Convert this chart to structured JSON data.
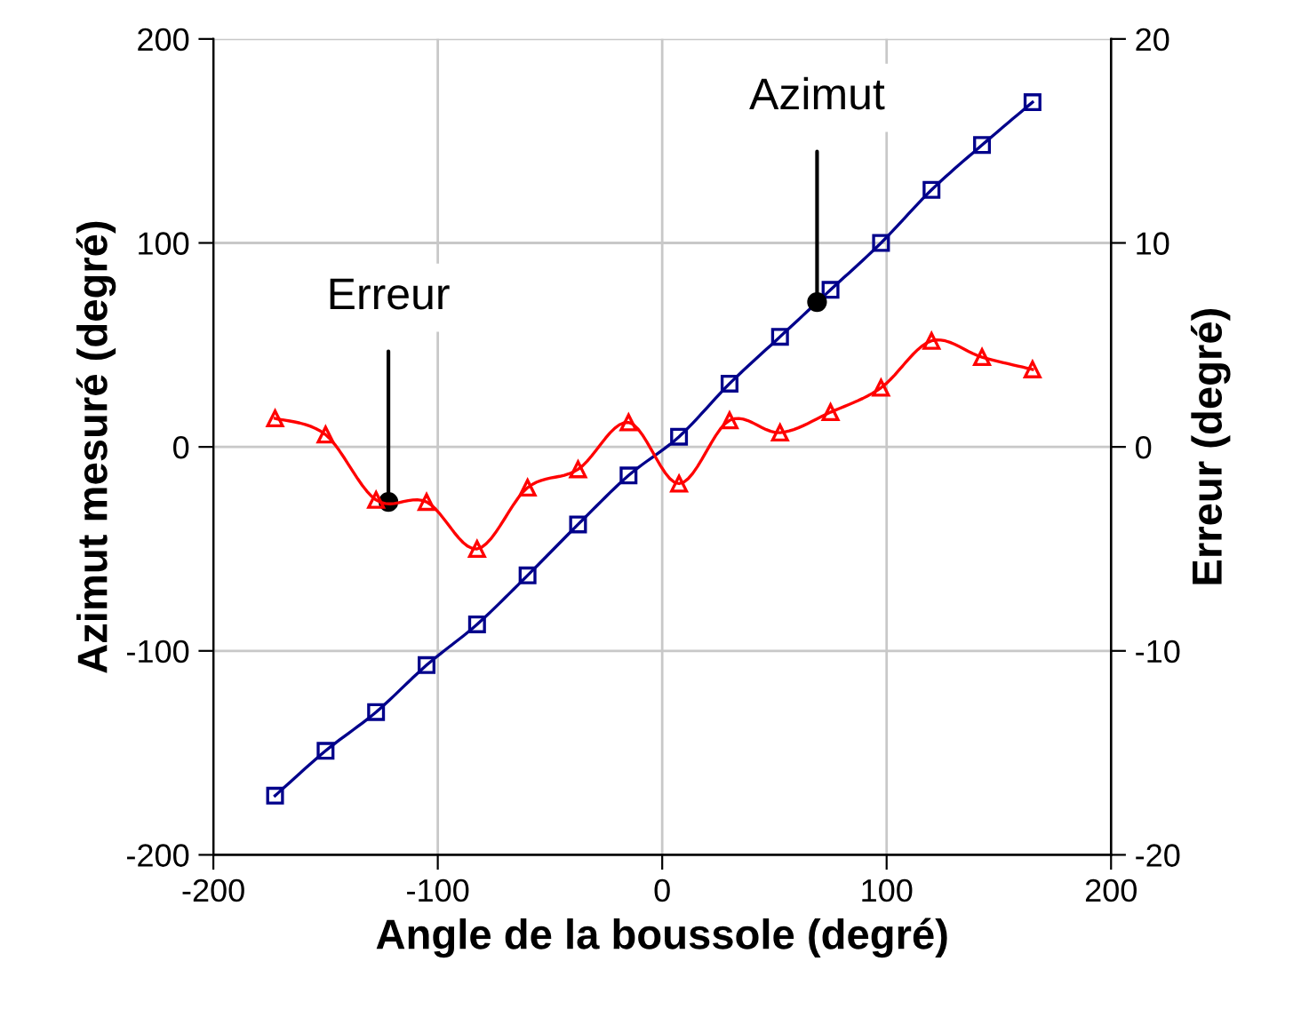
{
  "chart_data": {
    "type": "line",
    "xlabel": "Angle de la boussole (degré)",
    "ylabel": "Azimut mesuré (degré)",
    "y2label": "Erreur (degré)",
    "x": [
      -172.5,
      -150,
      -127.5,
      -105,
      -82.5,
      -60,
      -37.5,
      -15,
      7.5,
      30,
      52.5,
      75,
      97.5,
      120,
      142.5,
      165
    ],
    "series": [
      {
        "color": "#00008b",
        "marker": "square",
        "values": [
          -171,
          -149,
          -130,
          -107,
          -87,
          -63,
          -38,
          -14,
          5,
          31,
          54,
          77,
          100,
          126,
          148,
          169
        ]
      },
      {
        "color": "#ff0000",
        "marker": "triangle",
        "axis": "y2",
        "values": [
          1.4,
          0.6,
          -2.6,
          -2.7,
          -5.0,
          -2.0,
          -1.1,
          1.2,
          -1.8,
          1.3,
          0.7,
          1.7,
          2.9,
          5.2,
          4.4,
          3.8
        ]
      }
    ],
    "xlim": [
      -200,
      200
    ],
    "xticks": [
      -200,
      -100,
      0,
      100,
      200
    ],
    "ylim": [
      -200,
      200
    ],
    "yticks": [
      -200,
      -100,
      0,
      100,
      200
    ],
    "y2lim": [
      -20,
      20
    ],
    "y2ticks": [
      -20,
      -10,
      0,
      10,
      20
    ],
    "grid": true,
    "annotations": [
      {
        "text": "Erreur",
        "x": -122,
        "y": -27
      },
      {
        "text": "Azimut",
        "x": 69,
        "y": 71
      }
    ]
  }
}
